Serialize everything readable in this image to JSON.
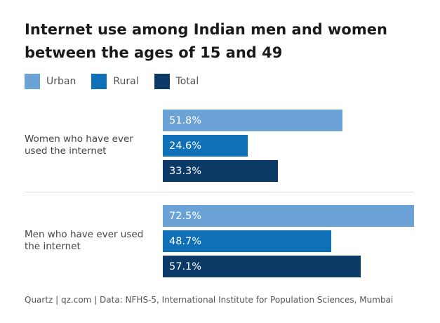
{
  "chart_data": {
    "type": "bar",
    "orientation": "horizontal",
    "title": "Internet use among Indian men and women between the ages of 15 and 49",
    "categories": [
      "Women who have ever used the internet",
      "Men who have ever used the internet"
    ],
    "series": [
      {
        "name": "Urban",
        "values": [
          51.8,
          72.5
        ],
        "labels": [
          "51.8%",
          "72.5%"
        ],
        "color": "#6ba3d6"
      },
      {
        "name": "Rural",
        "values": [
          24.6,
          48.7
        ],
        "labels": [
          "24.6%",
          "48.7%"
        ],
        "color": "#0f6fb7"
      },
      {
        "name": "Total",
        "values": [
          33.3,
          57.1
        ],
        "labels": [
          "33.3%",
          "57.1%"
        ],
        "color": "#0b3a66"
      }
    ],
    "xlim": [
      0,
      72.5
    ],
    "grid": false,
    "legend_position": "top-left",
    "source": "Quartz | qz.com | Data: NFHS-5, International Institute for Population Sciences, Mumbai"
  }
}
